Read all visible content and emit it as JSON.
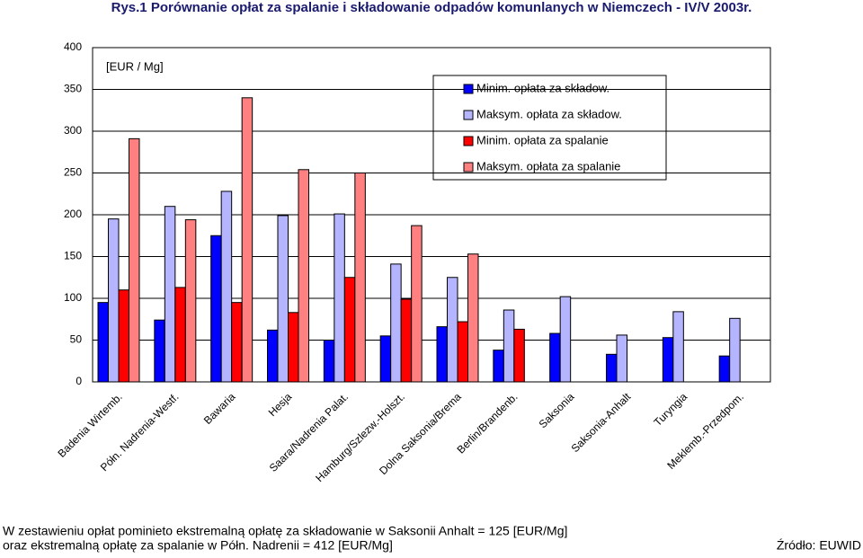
{
  "chart_data": {
    "type": "bar",
    "title": "Rys.1 Porównanie opłat za spalanie i składowanie odpadów komunlanych w Niemczech - IV/V 2003r.",
    "unit_label": "[EUR / Mg]",
    "categories": [
      "Badenia Wirtemb.",
      "Półn. Nadrenia-Westf.",
      "Bawaria",
      "Hesja",
      "Saara/Nadrenia Palat.",
      "Hamburg/Szlezw.-Holszt.",
      "Dolna Saksonia/Brema",
      "Berlin/Brandenb.",
      "Saksonia",
      "Saksonia-Anhalt",
      "Turyngia",
      "Meklemb.-Przedpom."
    ],
    "series": [
      {
        "name": "Minim. opłata za składow.",
        "color": "#0000ff",
        "values": [
          95,
          74,
          175,
          62,
          50,
          55,
          66,
          38,
          58,
          33,
          53,
          31
        ]
      },
      {
        "name": "Maksym. opłata za składow.",
        "color": "#b4b4ff",
        "values": [
          195,
          210,
          228,
          199,
          201,
          141,
          125,
          86,
          102,
          56,
          84,
          76
        ]
      },
      {
        "name": "Minim. opłata za spalanie",
        "color": "#ff0000",
        "values": [
          110,
          113,
          95,
          83,
          125,
          99,
          72,
          63,
          null,
          null,
          null,
          null
        ]
      },
      {
        "name": "Maksym. opłata za spalanie",
        "color": "#ff8080",
        "values": [
          291,
          194,
          340,
          254,
          250,
          187,
          153,
          null,
          null,
          null,
          null,
          null
        ]
      }
    ],
    "ylim": [
      0,
      400
    ],
    "yticks": [
      0,
      50,
      100,
      150,
      200,
      250,
      300,
      350,
      400
    ],
    "grid": true,
    "notes": [
      "W zestawieniu opłat pominieto ekstremalną opłatę za składowanie w Saksonii Anhalt = 125 [EUR/Mg]",
      "oraz ekstremalną opłatę za spalanie w Półn. Nadrenii = 412 [EUR/Mg]"
    ],
    "source": "Źródło: EUWID"
  }
}
